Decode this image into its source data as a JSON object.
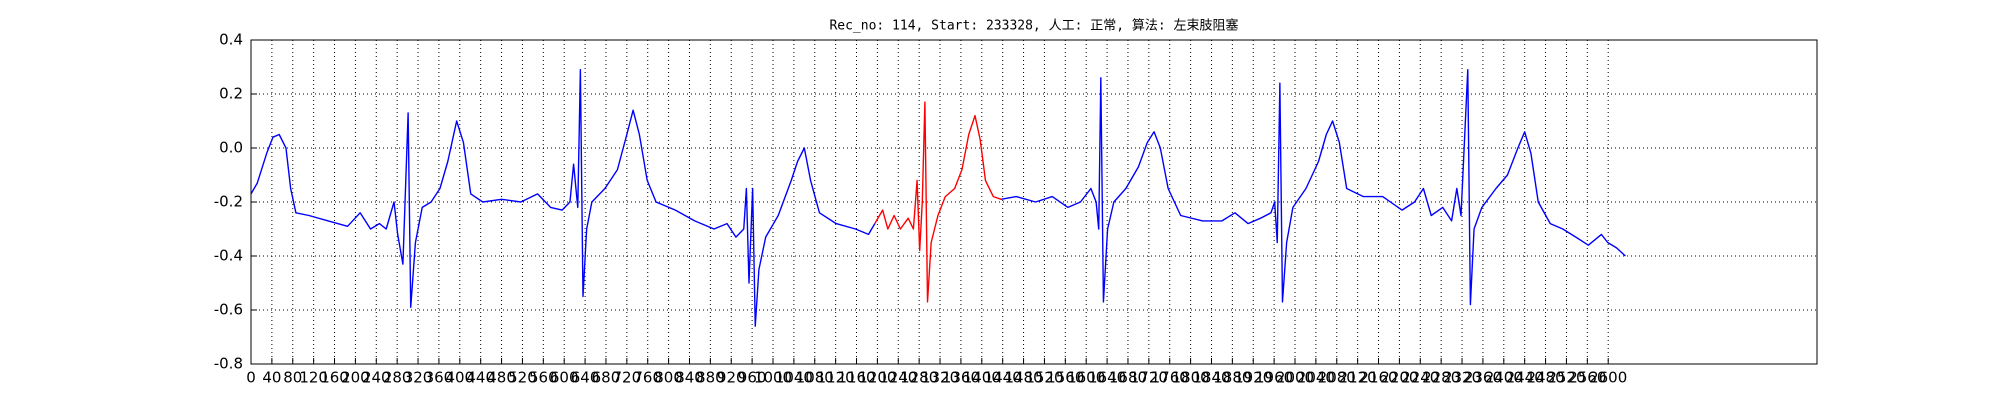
{
  "chart_data": {
    "type": "line",
    "title": "Rec_no: 114, Start: 233328, 人工: 正常, 算法: 左束肢阻塞",
    "xlim": [
      0,
      3000
    ],
    "ylim": [
      -0.8,
      0.4
    ],
    "xticks": [
      0,
      40,
      80,
      120,
      160,
      200,
      240,
      280,
      320,
      360,
      400,
      440,
      480,
      520,
      560,
      600,
      640,
      680,
      720,
      760,
      800,
      840,
      880,
      920,
      960,
      1000,
      1040,
      1080,
      1120,
      1160,
      1200,
      1240,
      1280,
      1320,
      1360,
      1400,
      1440,
      1480,
      1520,
      1560,
      1600,
      1640,
      1680,
      1720,
      1760,
      1800,
      1840,
      1880,
      1920,
      1960,
      2000,
      2040,
      2080,
      2120,
      2160,
      2200,
      2240,
      2280,
      2320,
      2360,
      2400,
      2440,
      2480,
      2520,
      2560,
      2600
    ],
    "yticks": [
      -0.8,
      -0.6,
      -0.4,
      -0.2,
      {
        "value": 0,
        "label": "0.0"
      },
      0.2,
      0.4
    ],
    "grid": true,
    "series": [
      {
        "color": "#0000ff",
        "x": [
          0,
          12,
          30,
          42,
          54,
          67,
          76,
          86,
          111,
          148,
          185,
          209,
          229,
          246,
          259,
          274,
          281,
          291,
          301,
          306,
          315,
          328,
          345,
          362,
          377,
          394,
          407,
          421,
          444,
          480,
          517,
          549,
          574,
          596,
          611,
          618,
          626,
          631,
          636,
          643,
          653,
          678,
          702,
          720,
          732,
          744,
          759,
          776,
          813,
          850,
          887,
          912,
          929,
          944,
          949,
          954,
          961,
          966,
          973,
          986,
          1010,
          1035,
          1047,
          1060,
          1072,
          1089,
          1121,
          1158,
          1183,
          1195
        ],
        "values": [
          -0.17,
          -0.13,
          -0.02,
          0.04,
          0.05,
          0.0,
          -0.15,
          -0.24,
          -0.25,
          -0.27,
          -0.29,
          -0.24,
          -0.3,
          -0.28,
          -0.3,
          -0.2,
          -0.32,
          -0.43,
          0.13,
          -0.59,
          -0.35,
          -0.22,
          -0.2,
          -0.15,
          -0.05,
          0.1,
          0.02,
          -0.17,
          -0.2,
          -0.19,
          -0.2,
          -0.17,
          -0.22,
          -0.23,
          -0.2,
          -0.06,
          -0.22,
          0.29,
          -0.55,
          -0.3,
          -0.2,
          -0.15,
          -0.08,
          0.05,
          0.14,
          0.05,
          -0.12,
          -0.2,
          -0.23,
          -0.27,
          -0.3,
          -0.28,
          -0.33,
          -0.3,
          -0.15,
          -0.5,
          -0.15,
          -0.66,
          -0.45,
          -0.33,
          -0.25,
          -0.12,
          -0.05,
          0.0,
          -0.12,
          -0.24,
          -0.28,
          -0.3,
          -0.32,
          -0.28
        ]
      },
      {
        "color": "#ff0000",
        "x": [
          1195,
          1210,
          1220,
          1232,
          1244,
          1259,
          1269,
          1276,
          1281,
          1286,
          1291,
          1296,
          1303,
          1316,
          1330,
          1348,
          1362,
          1375,
          1387,
          1397,
          1407,
          1422,
          1437
        ],
        "values": [
          -0.28,
          -0.23,
          -0.3,
          -0.25,
          -0.3,
          -0.26,
          -0.3,
          -0.12,
          -0.38,
          -0.2,
          0.17,
          -0.57,
          -0.35,
          -0.25,
          -0.18,
          -0.15,
          -0.08,
          0.05,
          0.12,
          0.03,
          -0.12,
          -0.18,
          -0.19
        ]
      },
      {
        "color": "#0000ff",
        "x": [
          1437,
          1466,
          1503,
          1535,
          1565,
          1589,
          1609,
          1619,
          1624,
          1628,
          1633,
          1641,
          1653,
          1676,
          1700,
          1717,
          1730,
          1742,
          1757,
          1781,
          1823,
          1860,
          1885,
          1910,
          1934,
          1954,
          1961,
          1966,
          1971,
          1976,
          1984,
          1996,
          2021,
          2045,
          2060,
          2072,
          2085,
          2099,
          2131,
          2168,
          2205,
          2229,
          2246,
          2261,
          2283,
          2300,
          2310,
          2318,
          2331,
          2336,
          2343,
          2358,
          2385,
          2407,
          2427,
          2440,
          2452,
          2466,
          2489,
          2513,
          2538,
          2562,
          2587,
          2599,
          2616,
          2633
        ],
        "values": [
          -0.19,
          -0.18,
          -0.2,
          -0.18,
          -0.22,
          -0.2,
          -0.15,
          -0.2,
          -0.3,
          0.26,
          -0.57,
          -0.3,
          -0.2,
          -0.15,
          -0.07,
          0.02,
          0.06,
          0.0,
          -0.15,
          -0.25,
          -0.27,
          -0.27,
          -0.24,
          -0.28,
          -0.26,
          -0.24,
          -0.2,
          -0.35,
          0.24,
          -0.57,
          -0.35,
          -0.22,
          -0.15,
          -0.05,
          0.05,
          0.1,
          0.02,
          -0.15,
          -0.18,
          -0.18,
          -0.23,
          -0.2,
          -0.15,
          -0.25,
          -0.22,
          -0.27,
          -0.15,
          -0.25,
          0.29,
          -0.58,
          -0.3,
          -0.22,
          -0.15,
          -0.1,
          0.0,
          0.06,
          -0.02,
          -0.2,
          -0.28,
          -0.3,
          -0.33,
          -0.36,
          -0.32,
          -0.35,
          -0.37,
          -0.4
        ]
      }
    ]
  }
}
